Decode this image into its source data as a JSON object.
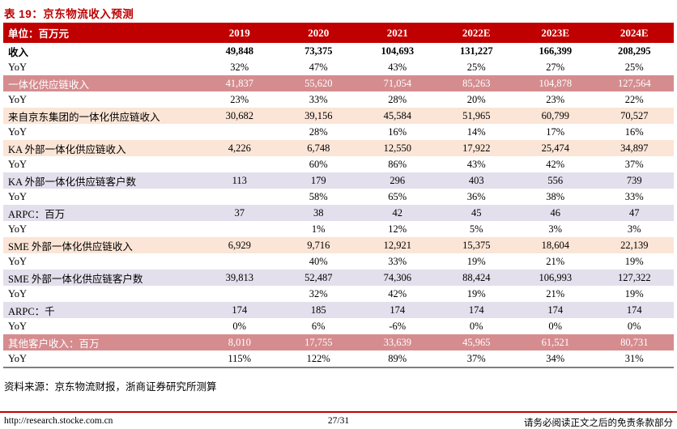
{
  "title": "表 19：京东物流收入预测",
  "colors": {
    "header_red": "#c00000",
    "title_red": "#be0000",
    "highlight_rose": "#d58c8f",
    "highlight_peach": "#fbe5d6",
    "highlight_lavender": "#e4dfec",
    "table_bottom_border": "#7f7f7f",
    "footer_rule_red": "#c00000"
  },
  "table": {
    "unit_label": "单位：百万元",
    "years": [
      "2019",
      "2020",
      "2021",
      "2022E",
      "2023E",
      "2024E"
    ],
    "rows": [
      {
        "label": "收入",
        "style": "plain",
        "bold": true,
        "values": [
          "49,848",
          "73,375",
          "104,693",
          "131,227",
          "166,399",
          "208,295"
        ]
      },
      {
        "label": "YoY",
        "style": "plain",
        "bold": false,
        "values": [
          "32%",
          "47%",
          "43%",
          "25%",
          "27%",
          "25%"
        ]
      },
      {
        "label": "一体化供应链收入",
        "style": "rose",
        "bold": false,
        "values": [
          "41,837",
          "55,620",
          "71,054",
          "85,263",
          "104,878",
          "127,564"
        ]
      },
      {
        "label": "YoY",
        "style": "plain",
        "bold": false,
        "values": [
          "23%",
          "33%",
          "28%",
          "20%",
          "23%",
          "22%"
        ]
      },
      {
        "label": "来自京东集团的一体化供应链收入",
        "style": "peach",
        "bold": false,
        "values": [
          "30,682",
          "39,156",
          "45,584",
          "51,965",
          "60,799",
          "70,527"
        ]
      },
      {
        "label": "YoY",
        "style": "plain",
        "bold": false,
        "values": [
          "",
          "28%",
          "16%",
          "14%",
          "17%",
          "16%"
        ]
      },
      {
        "label": "KA 外部一体化供应链收入",
        "style": "peach",
        "bold": false,
        "values": [
          "4,226",
          "6,748",
          "12,550",
          "17,922",
          "25,474",
          "34,897"
        ]
      },
      {
        "label": "YoY",
        "style": "plain",
        "bold": false,
        "values": [
          "",
          "60%",
          "86%",
          "43%",
          "42%",
          "37%"
        ]
      },
      {
        "label": "KA 外部一体化供应链客户数",
        "style": "lavender",
        "bold": false,
        "values": [
          "113",
          "179",
          "296",
          "403",
          "556",
          "739"
        ]
      },
      {
        "label": "YoY",
        "style": "plain",
        "bold": false,
        "values": [
          "",
          "58%",
          "65%",
          "36%",
          "38%",
          "33%"
        ]
      },
      {
        "label": "ARPC：百万",
        "style": "lavender",
        "bold": false,
        "values": [
          "37",
          "38",
          "42",
          "45",
          "46",
          "47"
        ]
      },
      {
        "label": "YoY",
        "style": "plain",
        "bold": false,
        "values": [
          "",
          "1%",
          "12%",
          "5%",
          "3%",
          "3%"
        ]
      },
      {
        "label": "SME 外部一体化供应链收入",
        "style": "peach",
        "bold": false,
        "values": [
          "6,929",
          "9,716",
          "12,921",
          "15,375",
          "18,604",
          "22,139"
        ]
      },
      {
        "label": "YoY",
        "style": "plain",
        "bold": false,
        "values": [
          "",
          "40%",
          "33%",
          "19%",
          "21%",
          "19%"
        ]
      },
      {
        "label": "SME 外部一体化供应链客户数",
        "style": "lavender",
        "bold": false,
        "values": [
          "39,813",
          "52,487",
          "74,306",
          "88,424",
          "106,993",
          "127,322"
        ]
      },
      {
        "label": "YoY",
        "style": "plain",
        "bold": false,
        "values": [
          "",
          "32%",
          "42%",
          "19%",
          "21%",
          "19%"
        ]
      },
      {
        "label": "ARPC：千",
        "style": "lavender",
        "bold": false,
        "values": [
          "174",
          "185",
          "174",
          "174",
          "174",
          "174"
        ]
      },
      {
        "label": "YoY",
        "style": "plain",
        "bold": false,
        "values": [
          "0%",
          "6%",
          "-6%",
          "0%",
          "0%",
          "0%"
        ]
      },
      {
        "label": "其他客户收入：百万",
        "style": "rose",
        "bold": false,
        "values": [
          "8,010",
          "17,755",
          "33,639",
          "45,965",
          "61,521",
          "80,731"
        ]
      },
      {
        "label": "YoY",
        "style": "plain",
        "bold": false,
        "values": [
          "115%",
          "122%",
          "89%",
          "37%",
          "34%",
          "31%"
        ]
      }
    ]
  },
  "source_note": "资料来源：京东物流财报，浙商证券研究所测算",
  "footer": {
    "url": "http://research.stocke.com.cn",
    "page": "27/31",
    "disclaimer": "请务必阅读正文之后的免责条款部分"
  }
}
